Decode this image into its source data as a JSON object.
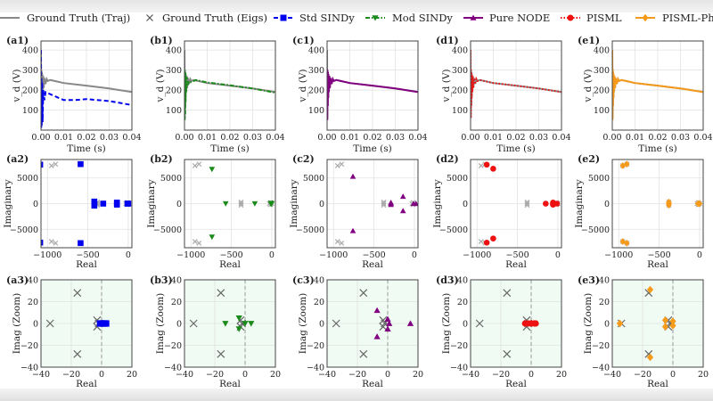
{
  "legend": [
    {
      "label": "Ground Truth (Traj)",
      "color": "#888888",
      "marker": "none",
      "linestyle": "solid"
    },
    {
      "label": "Ground Truth (Eigs)",
      "color": "#555555",
      "marker": "x",
      "linestyle": "none"
    },
    {
      "label": "Std SINDy",
      "color": "#0000ee",
      "marker": "square",
      "linestyle": "dashed"
    },
    {
      "label": "Mod SINDy",
      "color": "#1a8a1a",
      "marker": "triangle-down",
      "linestyle": "dashdot"
    },
    {
      "label": "Pure NODE",
      "color": "#800080",
      "marker": "triangle-up",
      "linestyle": "solid"
    },
    {
      "label": "PISML",
      "color": "#ee1111",
      "marker": "circle",
      "linestyle": "dotted"
    },
    {
      "label": "PISML-Phy",
      "color": "#f59a1a",
      "marker": "diamond",
      "linestyle": "solid"
    }
  ],
  "panel_labels": [
    [
      "(a1)",
      "(b1)",
      "(c1)",
      "(d1)",
      "(e1)"
    ],
    [
      "(a2)",
      "(b2)",
      "(c2)",
      "(d2)",
      "(e2)"
    ],
    [
      "(a3)",
      "(b3)",
      "(c3)",
      "(d3)",
      "(e3)"
    ]
  ],
  "chart_data": [
    {
      "type": "line",
      "xlabel": "Time (s)",
      "ylabel": "v_d (V)",
      "xlim": [
        0,
        0.04
      ],
      "ylim": [
        0,
        445
      ],
      "xticks": [
        0,
        0.01,
        0.02,
        0.03,
        0.04
      ],
      "xticklabels": [
        "0.00",
        "0.01",
        "0.02",
        "0.03",
        "0.04"
      ],
      "yticks": [
        100,
        200,
        300,
        400
      ],
      "yticklabels": [
        "100",
        "200",
        "300",
        "400"
      ],
      "grid": true,
      "ground_truth": [
        [
          0,
          400
        ],
        [
          0.0001,
          60
        ],
        [
          0.0002,
          300
        ],
        [
          0.0003,
          120
        ],
        [
          0.0004,
          290
        ],
        [
          0.0005,
          160
        ],
        [
          0.0006,
          280
        ],
        [
          0.0008,
          190
        ],
        [
          0.001,
          270
        ],
        [
          0.0012,
          210
        ],
        [
          0.0015,
          260
        ],
        [
          0.002,
          230
        ],
        [
          0.0025,
          255
        ],
        [
          0.003,
          245
        ],
        [
          0.004,
          250
        ],
        [
          0.006,
          245
        ],
        [
          0.01,
          235
        ],
        [
          0.02,
          222
        ],
        [
          0.03,
          208
        ],
        [
          0.04,
          190
        ]
      ],
      "series": [
        {
          "name": "Std SINDy",
          "values": [
            [
              0,
              400
            ],
            [
              0.0001,
              10
            ],
            [
              0.0002,
              260
            ],
            [
              0.0003,
              20
            ],
            [
              0.0005,
              240
            ],
            [
              0.0007,
              40
            ],
            [
              0.001,
              200
            ],
            [
              0.0015,
              150
            ],
            [
              0.002,
              190
            ],
            [
              0.004,
              180
            ],
            [
              0.01,
              150
            ],
            [
              0.015,
              150
            ],
            [
              0.02,
              155
            ],
            [
              0.03,
              145
            ],
            [
              0.04,
              125
            ]
          ]
        },
        {
          "name": "Mod SINDy",
          "values": [
            [
              0,
              300
            ],
            [
              0.0001,
              50
            ],
            [
              0.0002,
              300
            ],
            [
              0.0003,
              80
            ],
            [
              0.0004,
              290
            ],
            [
              0.0005,
              140
            ],
            [
              0.0006,
              270
            ],
            [
              0.0008,
              190
            ],
            [
              0.001,
              265
            ],
            [
              0.0015,
              225
            ],
            [
              0.002,
              245
            ],
            [
              0.003,
              240
            ],
            [
              0.005,
              250
            ],
            [
              0.01,
              238
            ],
            [
              0.02,
              224
            ],
            [
              0.03,
              208
            ],
            [
              0.04,
              187
            ]
          ]
        },
        {
          "name": "Pure NODE",
          "values": [
            [
              0,
              305
            ],
            [
              0.0001,
              50
            ],
            [
              0.0002,
              300
            ],
            [
              0.0003,
              120
            ],
            [
              0.0004,
              290
            ],
            [
              0.0005,
              160
            ],
            [
              0.0006,
              280
            ],
            [
              0.0008,
              190
            ],
            [
              0.001,
              270
            ],
            [
              0.0012,
              210
            ],
            [
              0.0015,
              260
            ],
            [
              0.002,
              230
            ],
            [
              0.0025,
              255
            ],
            [
              0.003,
              245
            ],
            [
              0.004,
              250
            ],
            [
              0.006,
              245
            ],
            [
              0.01,
              235
            ],
            [
              0.02,
              222
            ],
            [
              0.03,
              208
            ],
            [
              0.04,
              190
            ]
          ]
        },
        {
          "name": "PISML",
          "values": [
            [
              0,
              400
            ],
            [
              0.0001,
              60
            ],
            [
              0.0002,
              300
            ],
            [
              0.0003,
              120
            ],
            [
              0.0004,
              290
            ],
            [
              0.0005,
              160
            ],
            [
              0.0006,
              280
            ],
            [
              0.0008,
              190
            ],
            [
              0.001,
              270
            ],
            [
              0.0012,
              210
            ],
            [
              0.0015,
              260
            ],
            [
              0.002,
              230
            ],
            [
              0.0025,
              255
            ],
            [
              0.003,
              245
            ],
            [
              0.004,
              250
            ],
            [
              0.006,
              245
            ],
            [
              0.01,
              235
            ],
            [
              0.02,
              222
            ],
            [
              0.03,
              208
            ],
            [
              0.04,
              190
            ]
          ]
        },
        {
          "name": "PISML-Phy",
          "values": [
            [
              0,
              400
            ],
            [
              0.0001,
              50
            ],
            [
              0.0002,
              305
            ],
            [
              0.0003,
              120
            ],
            [
              0.0004,
              290
            ],
            [
              0.0005,
              160
            ],
            [
              0.0006,
              280
            ],
            [
              0.0008,
              190
            ],
            [
              0.001,
              270
            ],
            [
              0.0012,
              210
            ],
            [
              0.0015,
              260
            ],
            [
              0.002,
              230
            ],
            [
              0.0025,
              255
            ],
            [
              0.003,
              245
            ],
            [
              0.004,
              250
            ],
            [
              0.006,
              245
            ],
            [
              0.01,
              235
            ],
            [
              0.02,
              222
            ],
            [
              0.03,
              208
            ],
            [
              0.04,
              190
            ]
          ]
        }
      ]
    },
    {
      "type": "scatter",
      "xlabel": "Real",
      "ylabel": "Imaginary",
      "xlim": [
        -1080,
        45
      ],
      "ylim": [
        -8600,
        8600
      ],
      "xticks": [
        -1000,
        -500,
        0
      ],
      "xticklabels": [
        "−1000",
        "−500",
        "0"
      ],
      "yticks": [
        5000,
        0,
        -5000
      ],
      "yticklabels": [
        "5000",
        "0",
        "−5000"
      ],
      "grid": true,
      "ground_truth": [
        [
          -950,
          7400
        ],
        [
          -900,
          7700
        ],
        [
          -950,
          -7400
        ],
        [
          -900,
          -7700
        ],
        [
          -380,
          300
        ],
        [
          -380,
          -300
        ],
        [
          -380,
          0
        ],
        [
          -30,
          0
        ],
        [
          -15,
          200
        ],
        [
          -15,
          -200
        ],
        [
          0,
          0
        ]
      ],
      "series": [
        {
          "name": "Std SINDy",
          "values": [
            [
              -1090,
              7600
            ],
            [
              -1090,
              -7600
            ],
            [
              -590,
              7700
            ],
            [
              -590,
              -7700
            ],
            [
              -420,
              400
            ],
            [
              -420,
              -400
            ],
            [
              -420,
              0
            ],
            [
              -310,
              0
            ],
            [
              -140,
              200
            ],
            [
              -140,
              -200
            ],
            [
              -140,
              0
            ],
            [
              -10,
              0
            ],
            [
              0,
              0
            ]
          ]
        },
        {
          "name": "Mod SINDy",
          "values": [
            [
              -1150,
              7800
            ],
            [
              -1150,
              -7800
            ],
            [
              -740,
              6700
            ],
            [
              -740,
              -6500
            ],
            [
              -570,
              0
            ],
            [
              -210,
              0
            ],
            [
              -10,
              100
            ],
            [
              -10,
              -100
            ],
            [
              0,
              0
            ]
          ]
        },
        {
          "name": "Pure NODE",
          "values": [
            [
              -760,
              5300
            ],
            [
              -760,
              -5300
            ],
            [
              -290,
              200
            ],
            [
              -290,
              -200
            ],
            [
              -290,
              0
            ],
            [
              -140,
              1400
            ],
            [
              -140,
              -1400
            ],
            [
              -10,
              0
            ],
            [
              20,
              0
            ]
          ]
        },
        {
          "name": "PISML",
          "values": [
            [
              -880,
              7600
            ],
            [
              -880,
              -7600
            ],
            [
              -800,
              6800
            ],
            [
              -800,
              -6800
            ],
            [
              -150,
              0
            ],
            [
              -60,
              200
            ],
            [
              -60,
              -200
            ],
            [
              -60,
              0
            ],
            [
              -10,
              0
            ]
          ]
        },
        {
          "name": "PISML-Phy",
          "values": [
            [
              -950,
              7400
            ],
            [
              -950,
              -7400
            ],
            [
              -900,
              7700
            ],
            [
              -900,
              -7700
            ],
            [
              -380,
              300
            ],
            [
              -380,
              -300
            ],
            [
              -380,
              0
            ],
            [
              -20,
              0
            ],
            [
              0,
              0
            ]
          ]
        }
      ]
    },
    {
      "type": "scatter",
      "xlabel": "Real",
      "ylabel": "Imag (Zoom)",
      "xlim": [
        -40,
        20
      ],
      "ylim": [
        -40,
        40
      ],
      "xticks": [
        -40,
        -20,
        0,
        20
      ],
      "xticklabels": [
        "−40",
        "−20",
        "0",
        "20"
      ],
      "yticks": [
        40,
        20,
        0,
        -20,
        -40
      ],
      "yticklabels": [
        "40",
        "20",
        "0",
        "−20",
        "−40"
      ],
      "grid": true,
      "background": "#f0fbf4",
      "ground_truth": [
        [
          -34,
          0
        ],
        [
          -16,
          28
        ],
        [
          -16,
          -28
        ],
        [
          -3,
          3
        ],
        [
          -3,
          -3
        ],
        [
          -2,
          0
        ]
      ],
      "series": [
        {
          "name": "Std SINDy",
          "values": [
            [
              -1,
              0
            ],
            [
              0,
              0
            ],
            [
              1,
              0
            ],
            [
              2,
              0
            ],
            [
              3,
              0
            ]
          ]
        },
        {
          "name": "Mod SINDy",
          "values": [
            [
              -13,
              0
            ],
            [
              -4,
              5
            ],
            [
              -4,
              -5
            ],
            [
              0,
              0
            ],
            [
              4,
              0
            ]
          ]
        },
        {
          "name": "Pure NODE",
          "values": [
            [
              -7,
              12
            ],
            [
              -7,
              -12
            ],
            [
              0,
              4
            ],
            [
              0,
              -5
            ],
            [
              1,
              0
            ],
            [
              15,
              0
            ]
          ]
        },
        {
          "name": "PISML",
          "values": [
            [
              -4,
              0
            ],
            [
              -2,
              0
            ],
            [
              0,
              0
            ],
            [
              2,
              0
            ],
            [
              3,
              0
            ]
          ]
        },
        {
          "name": "PISML-Phy",
          "values": [
            [
              -35,
              0
            ],
            [
              -15,
              31
            ],
            [
              -15,
              -31
            ],
            [
              -5,
              3
            ],
            [
              -5,
              -3
            ],
            [
              0,
              2
            ],
            [
              0,
              -2
            ]
          ]
        }
      ]
    }
  ]
}
